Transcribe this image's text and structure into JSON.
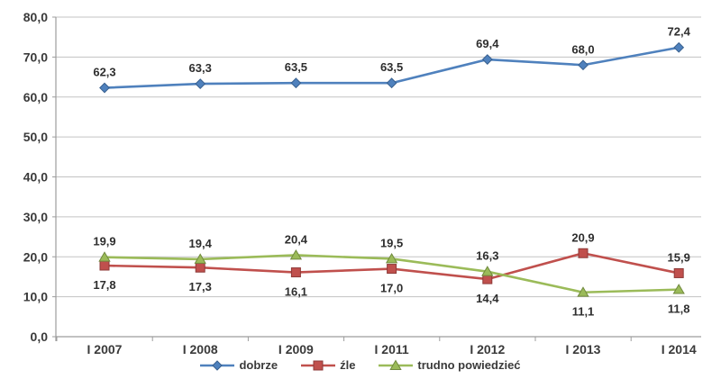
{
  "chart_data": {
    "type": "line",
    "title": "",
    "xlabel": "",
    "ylabel": "",
    "categories": [
      "I 2007",
      "I 2008",
      "I 2009",
      "I 2011",
      "I 2012",
      "I 2013",
      "I 2014"
    ],
    "series": [
      {
        "name": "dobrze",
        "color": "#4F81BD",
        "marker_border": "#38608F",
        "marker": "diamond",
        "values": [
          62.3,
          63.3,
          63.5,
          63.5,
          69.4,
          68.0,
          72.4
        ],
        "data_labels": [
          "62,3",
          "63,3",
          "63,5",
          "63,5",
          "69,4",
          "68,0",
          "72,4"
        ],
        "label_positions": [
          "above",
          "above",
          "above",
          "above",
          "above",
          "above",
          "above"
        ]
      },
      {
        "name": "źle",
        "color": "#C0504D",
        "marker_border": "#8E3A38",
        "marker": "square",
        "values": [
          17.8,
          17.3,
          16.1,
          17.0,
          14.4,
          20.9,
          15.9
        ],
        "data_labels": [
          "17,8",
          "17,3",
          "16,1",
          "17,0",
          "14,4",
          "20,9",
          "15,9"
        ],
        "label_positions": [
          "below",
          "below",
          "below",
          "below",
          "below",
          "above",
          "above"
        ]
      },
      {
        "name": "trudno powiedzieć",
        "color": "#9BBB59",
        "marker_border": "#718A3E",
        "marker": "triangle",
        "values": [
          19.9,
          19.4,
          20.4,
          19.5,
          16.3,
          11.1,
          11.8
        ],
        "data_labels": [
          "19,9",
          "19,4",
          "20,4",
          "19,5",
          "16,3",
          "11,1",
          "11,8"
        ],
        "label_positions": [
          "above",
          "above",
          "above",
          "above",
          "above",
          "below",
          "below"
        ]
      }
    ],
    "ylim": [
      0,
      80
    ],
    "ytick_step": 10,
    "ytick_labels": [
      "0,0",
      "10,0",
      "20,0",
      "30,0",
      "40,0",
      "50,0",
      "60,0",
      "70,0",
      "80,0"
    ],
    "decimal_separator": ",",
    "grid": true,
    "legend_position": "bottom",
    "colors": {
      "gridline": "#C3C3C3",
      "axis": "#9C9C9C",
      "text": "#3A3A3A",
      "background": "#FFFFFF"
    }
  }
}
